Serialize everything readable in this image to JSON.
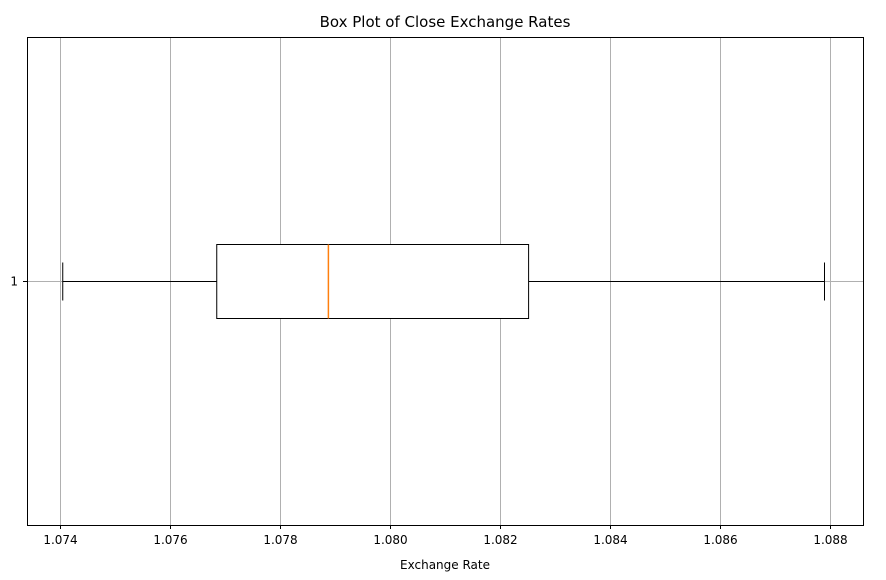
{
  "chart_data": {
    "type": "box",
    "orientation": "horizontal",
    "title": "Box Plot of Close Exchange Rates",
    "xlabel": "Exchange Rate",
    "ylabel": "",
    "xlim": [
      1.0734,
      1.0886
    ],
    "x_ticks": [
      1.074,
      1.076,
      1.078,
      1.08,
      1.082,
      1.084,
      1.086,
      1.088
    ],
    "x_tick_labels": [
      "1.074",
      "1.076",
      "1.078",
      "1.080",
      "1.082",
      "1.084",
      "1.086",
      "1.088"
    ],
    "categories": [
      "1"
    ],
    "grid": true,
    "boxes": [
      {
        "category": "1",
        "whisker_low": 1.07405,
        "q1": 1.07685,
        "median": 1.07888,
        "q3": 1.08252,
        "whisker_high": 1.0879
      }
    ],
    "colors": {
      "box": "#000000",
      "median": "#ff7f0e",
      "grid": "#b0b0b0"
    }
  }
}
